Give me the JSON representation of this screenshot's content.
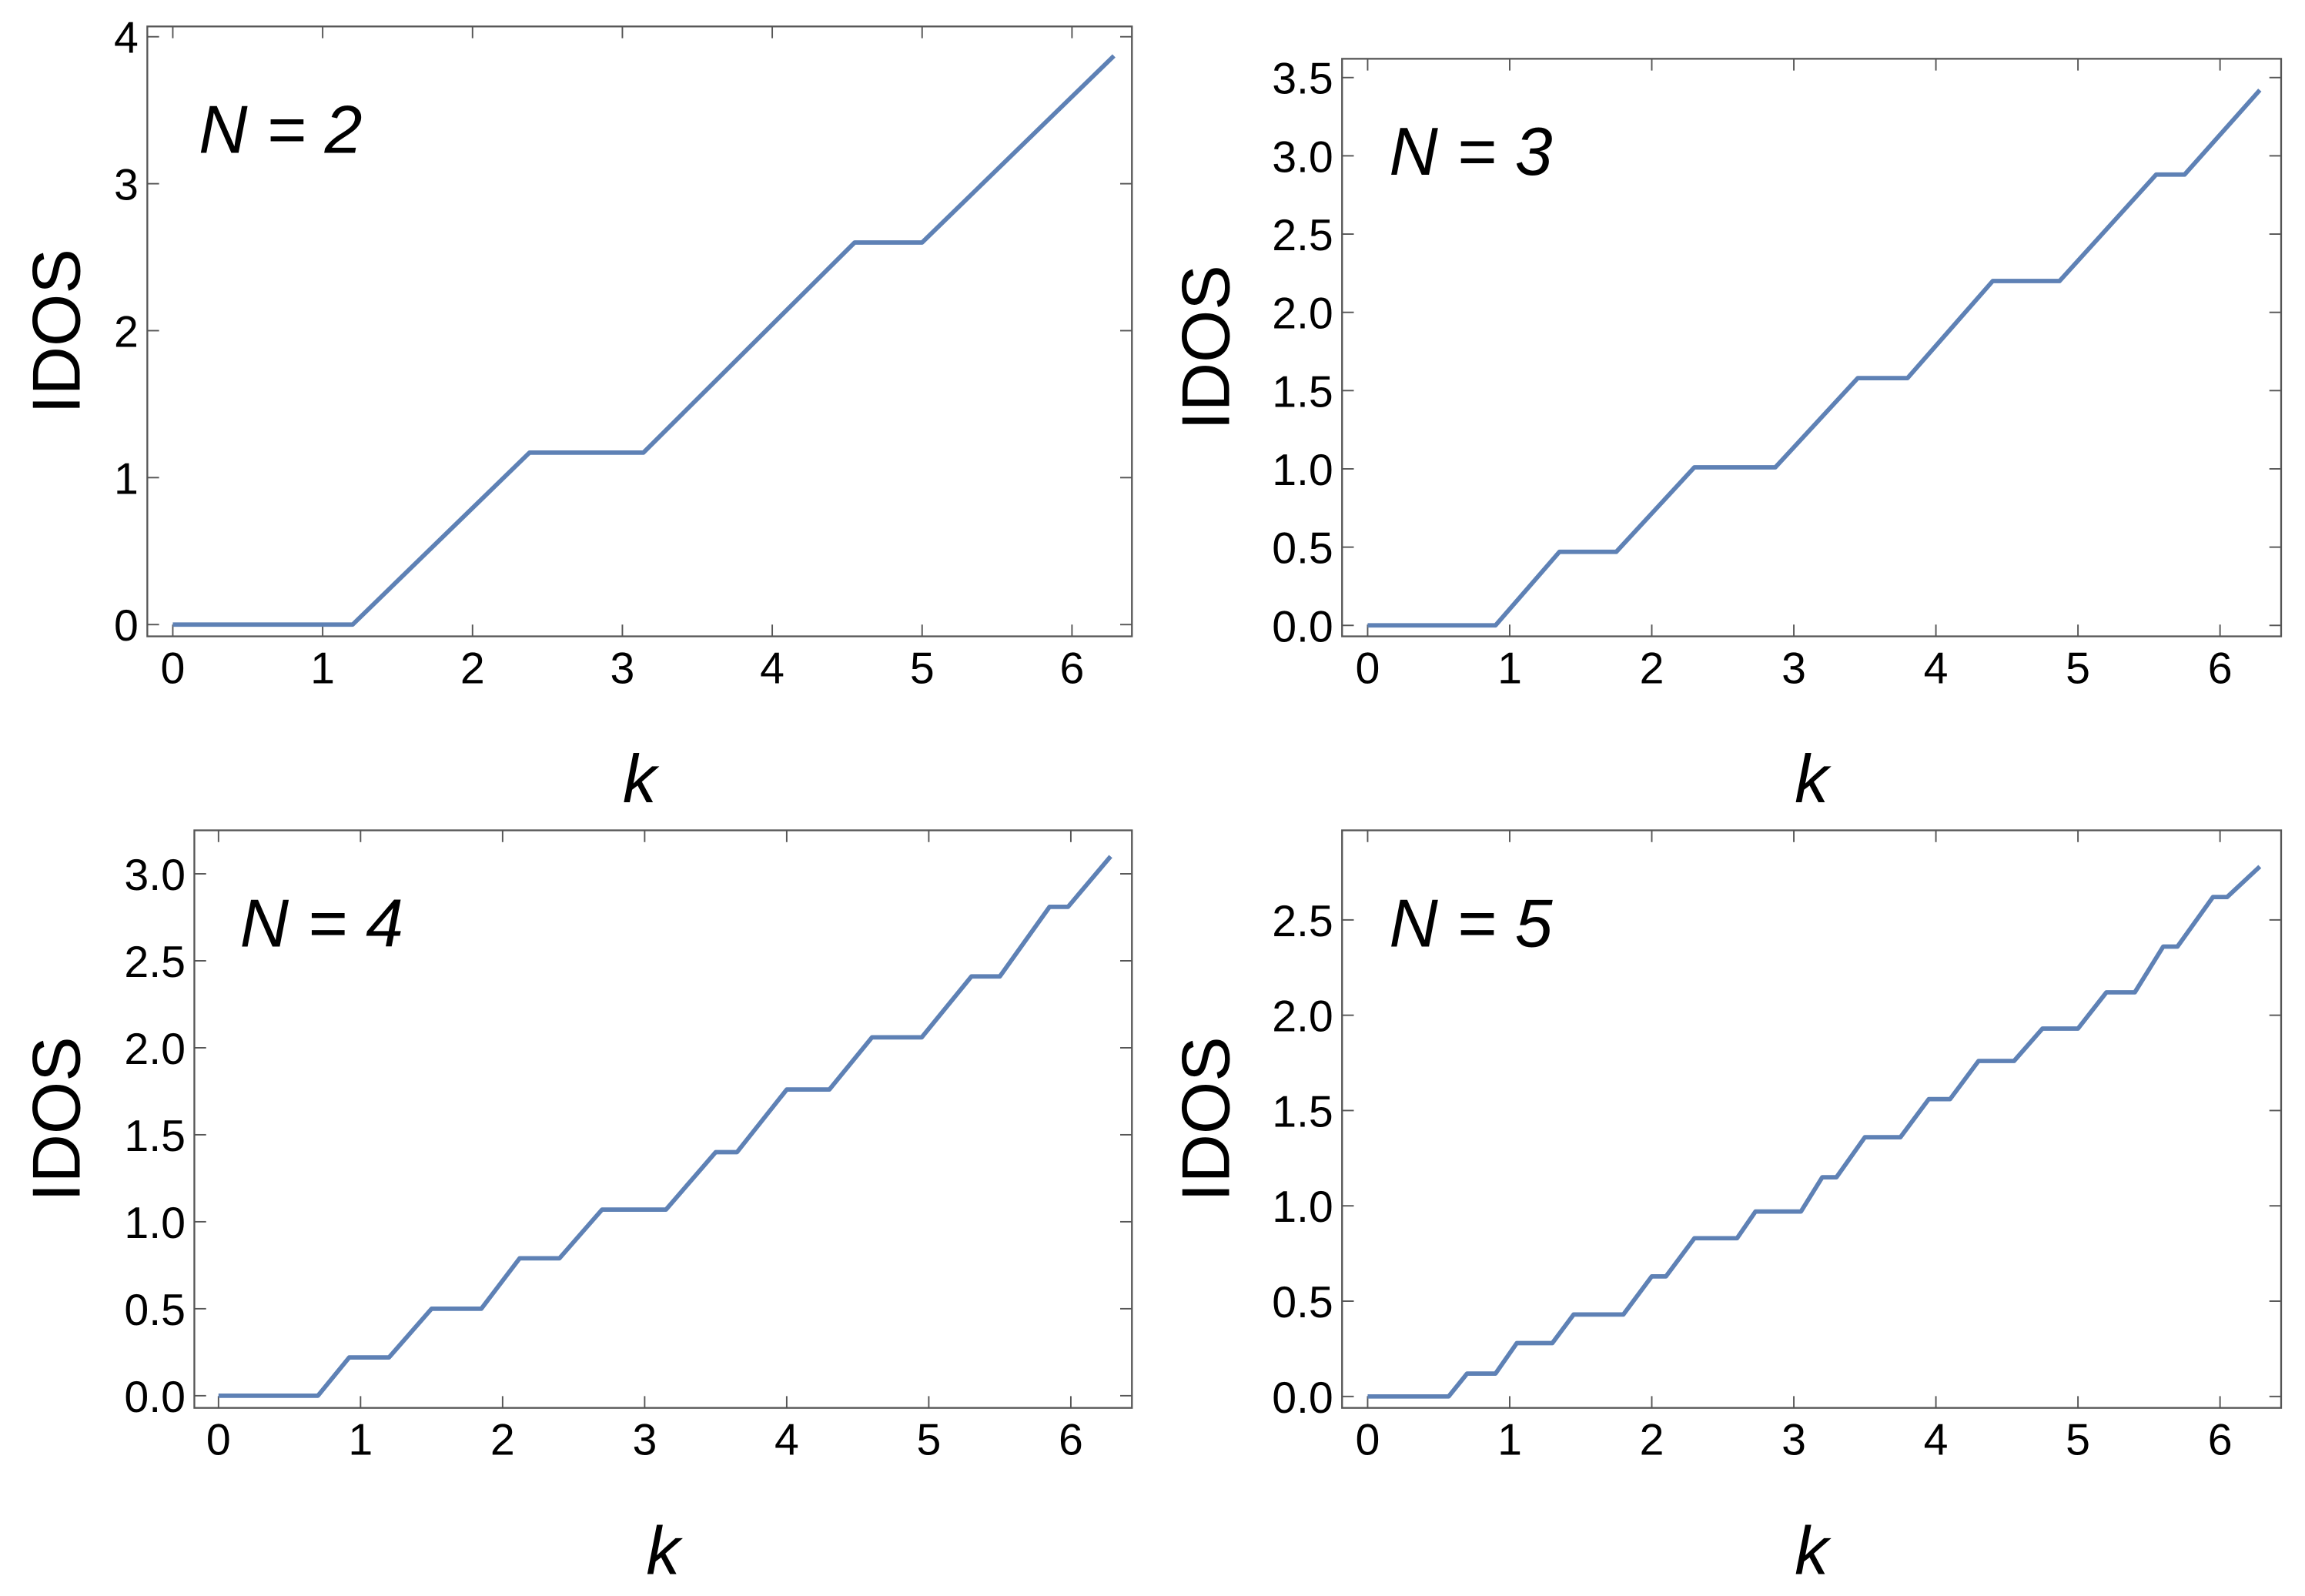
{
  "chart_data": [
    {
      "type": "line",
      "annotation": "N =  2",
      "xlabel": "k",
      "ylabel": "IDOS",
      "color": "#5e81b5",
      "x": [
        0,
        1.2,
        2.38,
        3.14,
        4.55,
        5.0,
        6.28
      ],
      "values": [
        0,
        0,
        1.17,
        1.17,
        2.6,
        2.6,
        3.87
      ],
      "xlim": [
        -0.17,
        6.4
      ],
      "ylim": [
        -0.08,
        4.07
      ],
      "xticks": [
        0,
        1,
        2,
        3,
        4,
        5,
        6
      ],
      "yticks": [
        0,
        1,
        2,
        3,
        4
      ]
    },
    {
      "type": "line",
      "annotation": "N =  3",
      "xlabel": "k",
      "ylabel": "IDOS",
      "color": "#5e81b5",
      "x": [
        0,
        0.9,
        1.35,
        1.75,
        2.3,
        2.87,
        3.45,
        3.8,
        4.4,
        4.87,
        5.55,
        5.75,
        6.28
      ],
      "values": [
        0,
        0,
        0.47,
        0.47,
        1.01,
        1.01,
        1.58,
        1.58,
        2.2,
        2.2,
        2.88,
        2.88,
        3.42
      ],
      "xlim": [
        -0.18,
        6.43
      ],
      "ylim": [
        -0.07,
        3.62
      ],
      "xticks": [
        0,
        1,
        2,
        3,
        4,
        5,
        6
      ],
      "yticks": [
        {
          "value": 0,
          "label": "0.0"
        },
        {
          "value": 0.5,
          "label": "0.5"
        },
        {
          "value": 1,
          "label": "1.0"
        },
        {
          "value": 1.5,
          "label": "1.5"
        },
        {
          "value": 2,
          "label": "2.0"
        },
        {
          "value": 2.5,
          "label": "2.5"
        },
        {
          "value": 3,
          "label": "3.0"
        },
        {
          "value": 3.5,
          "label": "3.5"
        }
      ]
    },
    {
      "type": "line",
      "annotation": "N =  4",
      "xlabel": "k",
      "ylabel": "IDOS",
      "color": "#5e81b5",
      "x": [
        0,
        0.7,
        0.92,
        1.2,
        1.5,
        1.85,
        2.12,
        2.4,
        2.7,
        3.15,
        3.5,
        3.65,
        4.0,
        4.3,
        4.6,
        4.95,
        5.3,
        5.5,
        5.85,
        5.98,
        6.28
      ],
      "values": [
        0,
        0,
        0.22,
        0.22,
        0.5,
        0.5,
        0.79,
        0.79,
        1.07,
        1.07,
        1.4,
        1.4,
        1.76,
        1.76,
        2.06,
        2.06,
        2.41,
        2.41,
        2.81,
        2.81,
        3.1
      ],
      "xlim": [
        -0.17,
        6.43
      ],
      "ylim": [
        -0.07,
        3.25
      ],
      "xticks": [
        0,
        1,
        2,
        3,
        4,
        5,
        6
      ],
      "yticks": [
        {
          "value": 0,
          "label": "0.0"
        },
        {
          "value": 0.5,
          "label": "0.5"
        },
        {
          "value": 1,
          "label": "1.0"
        },
        {
          "value": 1.5,
          "label": "1.5"
        },
        {
          "value": 2,
          "label": "2.0"
        },
        {
          "value": 2.5,
          "label": "2.5"
        },
        {
          "value": 3,
          "label": "3.0"
        }
      ]
    },
    {
      "type": "line",
      "annotation": "N =  5",
      "xlabel": "k",
      "ylabel": "IDOS",
      "color": "#5e81b5",
      "x": [
        0,
        0.57,
        0.7,
        0.9,
        1.05,
        1.3,
        1.45,
        1.8,
        2.0,
        2.1,
        2.3,
        2.6,
        2.73,
        3.05,
        3.2,
        3.3,
        3.5,
        3.75,
        3.95,
        4.1,
        4.3,
        4.55,
        4.75,
        5.0,
        5.2,
        5.4,
        5.6,
        5.7,
        5.95,
        6.05,
        6.28
      ],
      "values": [
        0,
        0,
        0.12,
        0.12,
        0.28,
        0.28,
        0.43,
        0.43,
        0.63,
        0.63,
        0.83,
        0.83,
        0.97,
        0.97,
        1.15,
        1.15,
        1.36,
        1.36,
        1.56,
        1.56,
        1.76,
        1.76,
        1.93,
        1.93,
        2.12,
        2.12,
        2.36,
        2.36,
        2.62,
        2.62,
        2.78
      ],
      "xlim": [
        -0.18,
        6.43
      ],
      "ylim": [
        -0.06,
        2.97
      ],
      "xticks": [
        0,
        1,
        2,
        3,
        4,
        5,
        6
      ],
      "yticks": [
        {
          "value": 0,
          "label": "0.0"
        },
        {
          "value": 0.5,
          "label": "0.5"
        },
        {
          "value": 1,
          "label": "1.0"
        },
        {
          "value": 1.5,
          "label": "1.5"
        },
        {
          "value": 2,
          "label": "2.0"
        },
        {
          "value": 2.5,
          "label": "2.5"
        }
      ]
    }
  ]
}
